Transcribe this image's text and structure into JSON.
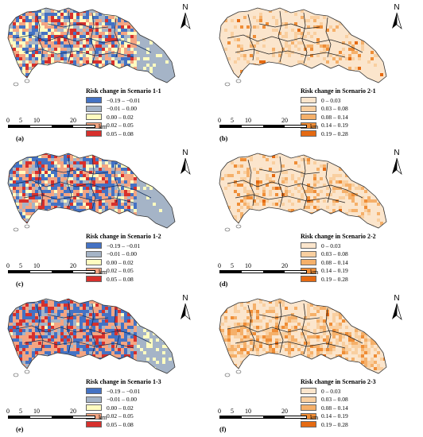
{
  "panels": [
    {
      "id": "a",
      "label": "(a)",
      "legend_title": "Risk change in Scenario 1-1",
      "palette": "diverging",
      "intensity": 0.35,
      "seed": 11
    },
    {
      "id": "b",
      "label": "(b)",
      "legend_title": "Risk change in Scenario 2-1",
      "palette": "orange",
      "intensity": 0.05,
      "seed": 21
    },
    {
      "id": "c",
      "label": "(c)",
      "legend_title": "Risk change in Scenario 1-2",
      "palette": "diverging",
      "intensity": 0.55,
      "seed": 31
    },
    {
      "id": "d",
      "label": "(d)",
      "legend_title": "Risk change in Scenario 2-2",
      "palette": "orange",
      "intensity": 0.12,
      "seed": 41
    },
    {
      "id": "e",
      "label": "(e)",
      "legend_title": "Risk change in Scenario 1-3",
      "palette": "diverging",
      "intensity": 0.85,
      "seed": 51
    },
    {
      "id": "f",
      "label": "(f)",
      "legend_title": "Risk change in Scenario 2-3",
      "palette": "orange",
      "intensity": 0.3,
      "seed": 61
    }
  ],
  "legends": {
    "diverging": [
      {
        "range": "−0.19 – −0.01",
        "color": "#4472c4"
      },
      {
        "range": "−0.01 – 0.00",
        "color": "#a5b4c7"
      },
      {
        "range": "0.00 – 0.02",
        "color": "#fffcc0"
      },
      {
        "range": "0.02 – 0.05",
        "color": "#f4a582"
      },
      {
        "range": "0.05 – 0.08",
        "color": "#d7302c"
      }
    ],
    "orange": [
      {
        "range": "0 – 0.03",
        "color": "#fbe5cc"
      },
      {
        "range": "0.03 – 0.08",
        "color": "#f9cfa0"
      },
      {
        "range": "0.08 – 0.14",
        "color": "#f5b06a"
      },
      {
        "range": "0.14 – 0.19",
        "color": "#ef8d36"
      },
      {
        "range": "0.19 – 0.28",
        "color": "#e56a12"
      }
    ]
  },
  "scale_bar": {
    "ticks": [
      "0",
      "5",
      "10",
      "20"
    ],
    "unit": "km"
  },
  "north_label": "N"
}
